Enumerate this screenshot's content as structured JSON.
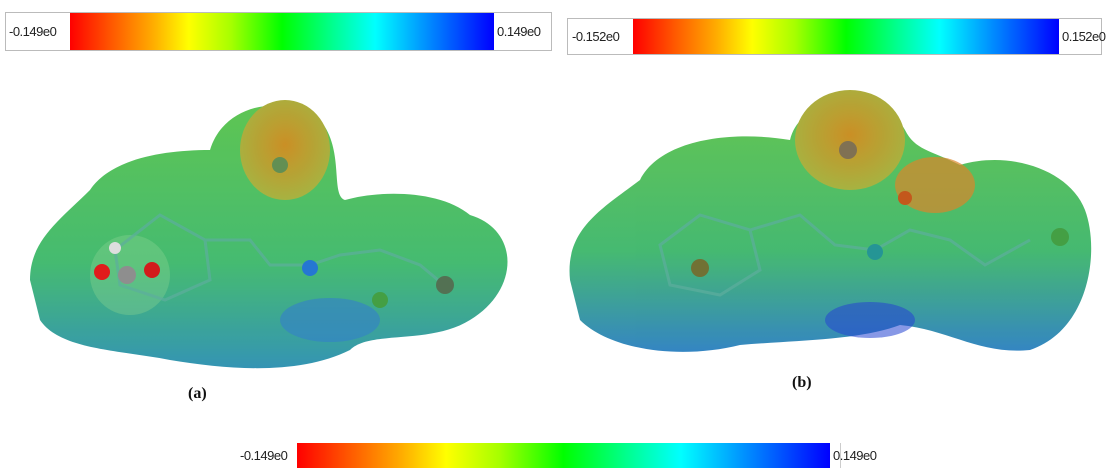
{
  "colorbars": [
    {
      "min_label": "-0.149e0",
      "max_label": "0.149e0"
    },
    {
      "min_label": "-0.152e0",
      "max_label": "0.152e0"
    },
    {
      "min_label": "-0.149e0",
      "max_label": "0.149e0"
    }
  ],
  "panels": [
    {
      "label": "(a)"
    },
    {
      "label": "(b)"
    }
  ]
}
